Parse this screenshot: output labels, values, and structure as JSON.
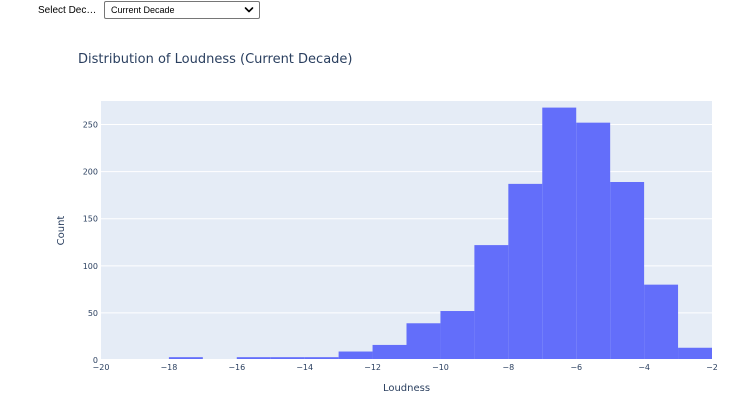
{
  "selector": {
    "label": "Select Dec…",
    "value": "Current Decade",
    "chevron_icon": "chevron-down-icon"
  },
  "chart_data": {
    "type": "bar",
    "title": "Distribution of Loudness (Current Decade)",
    "xlabel": "Loudness",
    "ylabel": "Count",
    "xlim": [
      -20,
      -2
    ],
    "ylim": [
      0,
      275
    ],
    "xticks": [
      -20,
      -18,
      -16,
      -14,
      -12,
      -10,
      -8,
      -6,
      -4,
      -2
    ],
    "yticks": [
      0,
      50,
      100,
      150,
      200,
      250
    ],
    "bin_width": 1,
    "bins": [
      {
        "x0": -20,
        "count": 1
      },
      {
        "x0": -19,
        "count": 0
      },
      {
        "x0": -18,
        "count": 3
      },
      {
        "x0": -17,
        "count": 1
      },
      {
        "x0": -16,
        "count": 3
      },
      {
        "x0": -15,
        "count": 3
      },
      {
        "x0": -14,
        "count": 3
      },
      {
        "x0": -13,
        "count": 9
      },
      {
        "x0": -12,
        "count": 16
      },
      {
        "x0": -11,
        "count": 39
      },
      {
        "x0": -10,
        "count": 52
      },
      {
        "x0": -9,
        "count": 122
      },
      {
        "x0": -8,
        "count": 187
      },
      {
        "x0": -7,
        "count": 268
      },
      {
        "x0": -6,
        "count": 252
      },
      {
        "x0": -5,
        "count": 189
      },
      {
        "x0": -4,
        "count": 80
      },
      {
        "x0": -3,
        "count": 13
      }
    ],
    "grid": true,
    "colors": {
      "bar": "#636efa",
      "plot_bg": "#e5ecf6",
      "grid": "#ffffff",
      "text": "#2a3f5f"
    }
  }
}
